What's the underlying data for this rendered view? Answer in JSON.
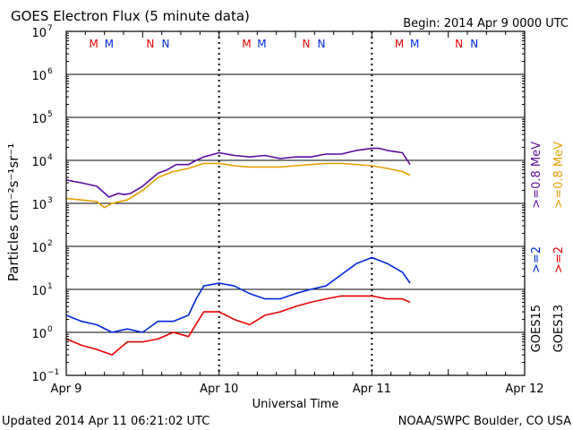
{
  "chart_data": {
    "type": "line",
    "title": "GOES Electron Flux (5 minute data)",
    "begin_label": "Begin: 2014 Apr 9 0000 UTC",
    "xlabel": "Universal Time",
    "ylabel": "Particles cm⁻²s⁻¹sr⁻¹",
    "y_scale": "log",
    "ylim": [
      0.1,
      10000000
    ],
    "xlim_days": [
      0,
      3
    ],
    "x_ticks": [
      {
        "day": 0,
        "label": "Apr 9"
      },
      {
        "day": 1,
        "label": "Apr 10"
      },
      {
        "day": 2,
        "label": "Apr 11"
      },
      {
        "day": 3,
        "label": "Apr 12"
      }
    ],
    "y_ticks": [
      {
        "exp": -1,
        "label": "10",
        "sup": "−1"
      },
      {
        "exp": 0,
        "label": "10",
        "sup": "0"
      },
      {
        "exp": 1,
        "label": "10",
        "sup": "1"
      },
      {
        "exp": 2,
        "label": "10",
        "sup": "2"
      },
      {
        "exp": 3,
        "label": "10",
        "sup": "3"
      },
      {
        "exp": 4,
        "label": "10",
        "sup": "4"
      },
      {
        "exp": 5,
        "label": "10",
        "sup": "5"
      },
      {
        "exp": 6,
        "label": "10",
        "sup": "6"
      },
      {
        "exp": 7,
        "label": "10",
        "sup": "7"
      }
    ],
    "alert_threshold": 1000,
    "grid": "horizontal decades, dotted day lines",
    "legend_placement": "right (vertical)",
    "series": [
      {
        "name": ">=0.8 MeV",
        "color": "#5a0aa0",
        "x": [
          0.0,
          0.1,
          0.2,
          0.28,
          0.34,
          0.38,
          0.42,
          0.5,
          0.6,
          0.66,
          0.72,
          0.8,
          0.85,
          0.9,
          1.0,
          1.1,
          1.2,
          1.3,
          1.4,
          1.5,
          1.6,
          1.7,
          1.8,
          1.9,
          2.0,
          2.05,
          2.1,
          2.2,
          2.25
        ],
        "y": [
          3500,
          3000,
          2500,
          1400,
          1700,
          1600,
          1700,
          2500,
          5000,
          6000,
          8000,
          8000,
          10000,
          12000,
          15000,
          13000,
          12000,
          13000,
          11000,
          12000,
          12000,
          14000,
          14000,
          17000,
          19000,
          19000,
          17000,
          15000,
          8000
        ]
      },
      {
        "name": ">=0.8 MeV",
        "color": "#e8a000",
        "x": [
          0.0,
          0.1,
          0.2,
          0.25,
          0.3,
          0.4,
          0.5,
          0.6,
          0.7,
          0.8,
          0.9,
          1.0,
          1.1,
          1.2,
          1.3,
          1.4,
          1.5,
          1.6,
          1.7,
          1.8,
          1.9,
          2.0,
          2.1,
          2.2,
          2.25
        ],
        "y": [
          1300,
          1200,
          1100,
          800,
          1000,
          1200,
          2000,
          4000,
          5500,
          6500,
          8500,
          8500,
          7500,
          7000,
          7000,
          7000,
          7500,
          8000,
          8500,
          8500,
          8000,
          7500,
          6500,
          5500,
          4500
        ]
      },
      {
        "name": ">=2 MeV",
        "color": "#0028e0",
        "x": [
          0.0,
          0.1,
          0.2,
          0.3,
          0.4,
          0.5,
          0.6,
          0.7,
          0.8,
          0.85,
          0.9,
          1.0,
          1.1,
          1.2,
          1.3,
          1.4,
          1.5,
          1.6,
          1.7,
          1.8,
          1.9,
          2.0,
          2.1,
          2.2,
          2.25
        ],
        "y": [
          2.5,
          1.8,
          1.5,
          1.0,
          1.2,
          1.0,
          1.8,
          1.8,
          2.5,
          6,
          12,
          14,
          12,
          8,
          6,
          6,
          8,
          10,
          12,
          22,
          40,
          55,
          40,
          25,
          14
        ]
      },
      {
        "name": ">=2 MeV",
        "color": "#e80000",
        "x": [
          0.0,
          0.1,
          0.2,
          0.3,
          0.4,
          0.5,
          0.6,
          0.7,
          0.8,
          0.9,
          1.0,
          1.1,
          1.2,
          1.3,
          1.4,
          1.5,
          1.6,
          1.7,
          1.8,
          1.9,
          2.0,
          2.1,
          2.2,
          2.25
        ],
        "y": [
          0.7,
          0.5,
          0.4,
          0.3,
          0.6,
          0.6,
          0.7,
          1.0,
          0.8,
          3,
          3,
          2,
          1.5,
          2.5,
          3,
          4,
          5,
          6,
          7,
          7,
          7,
          6,
          6,
          5
        ]
      }
    ],
    "legend_labels": [
      {
        "text": ">=0.8 MeV",
        "color": "#5a0aa0"
      },
      {
        "text": ">=0.8 MeV",
        "color": "#e8a000"
      },
      {
        "text": ">=2",
        "color": "#0028e0"
      },
      {
        "text": ">=2",
        "color": "#e80000"
      },
      {
        "text": "GOES15",
        "color": "#000000"
      },
      {
        "text": "GOES13",
        "color": "#000000"
      }
    ],
    "flags": [
      {
        "day": 0.18,
        "letter": "M",
        "color": "#e80000"
      },
      {
        "day": 0.28,
        "letter": "M",
        "color": "#0028e0"
      },
      {
        "day": 0.55,
        "letter": "N",
        "color": "#e80000"
      },
      {
        "day": 0.65,
        "letter": "N",
        "color": "#0028e0"
      },
      {
        "day": 1.18,
        "letter": "M",
        "color": "#e80000"
      },
      {
        "day": 1.28,
        "letter": "M",
        "color": "#0028e0"
      },
      {
        "day": 1.57,
        "letter": "N",
        "color": "#e80000"
      },
      {
        "day": 1.67,
        "letter": "N",
        "color": "#0028e0"
      },
      {
        "day": 2.18,
        "letter": "M",
        "color": "#e80000"
      },
      {
        "day": 2.28,
        "letter": "M",
        "color": "#0028e0"
      },
      {
        "day": 2.57,
        "letter": "N",
        "color": "#e80000"
      },
      {
        "day": 2.67,
        "letter": "N",
        "color": "#0028e0"
      }
    ]
  },
  "footer": {
    "updated": "Updated 2014 Apr 11 06:21:02 UTC",
    "credit": "NOAA/SWPC Boulder, CO USA"
  }
}
